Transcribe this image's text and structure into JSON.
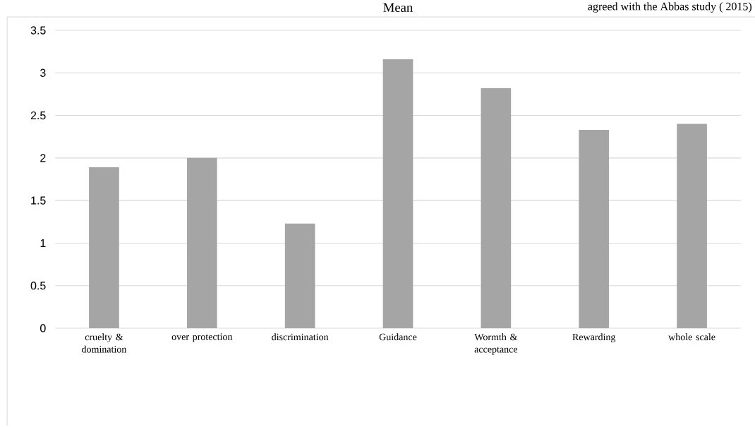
{
  "chart_data": {
    "type": "bar",
    "title": "Mean",
    "annotations": [
      "agreed with the Abbas study ( 2015)"
    ],
    "categories": [
      "cruelty & domination",
      "over protection",
      "discrimination",
      "Guidance",
      "Wormth & acceptance",
      "Rewarding",
      "whole scale"
    ],
    "values": [
      1.89,
      2.0,
      1.23,
      3.16,
      2.82,
      2.33,
      2.4
    ],
    "color": "#a5a5a5",
    "ylim": [
      0,
      3.5
    ],
    "yticks": [
      0,
      0.5,
      1,
      1.5,
      2,
      2.5,
      3,
      3.5
    ],
    "grid": "y"
  }
}
